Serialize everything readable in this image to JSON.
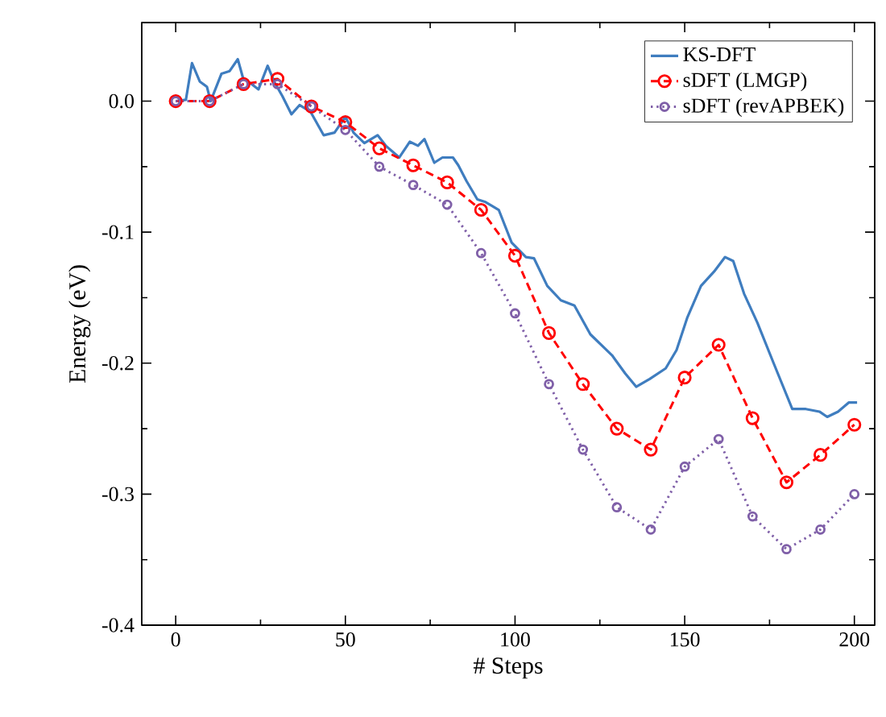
{
  "chart_data": {
    "type": "line",
    "xlabel": "# Steps",
    "ylabel": "Energy (eV)",
    "xlim": [
      -10,
      206
    ],
    "ylim": [
      -0.4,
      0.06
    ],
    "xticks": [
      0,
      50,
      100,
      150,
      200
    ],
    "yticks": [
      {
        "value": 0.0,
        "label": "0.0"
      },
      {
        "value": -0.1,
        "label": "-0.1"
      },
      {
        "value": -0.2,
        "label": "-0.2"
      },
      {
        "value": -0.3,
        "label": "-0.3"
      },
      {
        "value": -0.4,
        "label": "-0.4"
      }
    ],
    "grid": false,
    "legend": "top right",
    "series": [
      {
        "name": "KS-DFT",
        "color": "#3f7dbf",
        "marker": "none",
        "line_style": "solid",
        "x": [
          0,
          3,
          4.8,
          7.1,
          9.2,
          10.3,
          13.5,
          15.9,
          18.3,
          19.8,
          22.4,
          24.4,
          27.1,
          29,
          31.4,
          34.1,
          36.5,
          39.7,
          43.6,
          46.8,
          50,
          52.4,
          55.6,
          59.5,
          61.9,
          65.9,
          69,
          71.4,
          73.3,
          76.2,
          78.6,
          81.7,
          83.3,
          85.7,
          88.9,
          91.3,
          95.2,
          99,
          103.2,
          105.6,
          109.5,
          113.5,
          117.5,
          122.2,
          128.6,
          132.5,
          135.7,
          139.7,
          144.4,
          147.6,
          150.8,
          154.8,
          158.7,
          161.9,
          164.3,
          167.5,
          171.4,
          176.2,
          181.7,
          185.7,
          189.7,
          192,
          195.2,
          198.4,
          200.8
        ],
        "values": [
          0.0,
          0.001,
          0.029,
          0.015,
          0.011,
          0.0,
          0.021,
          0.023,
          0.032,
          0.018,
          0.013,
          0.009,
          0.027,
          0.015,
          0.004,
          -0.01,
          -0.003,
          -0.008,
          -0.026,
          -0.024,
          -0.012,
          -0.024,
          -0.032,
          -0.026,
          -0.034,
          -0.043,
          -0.031,
          -0.034,
          -0.029,
          -0.047,
          -0.043,
          -0.043,
          -0.049,
          -0.061,
          -0.075,
          -0.077,
          -0.083,
          -0.108,
          -0.119,
          -0.12,
          -0.141,
          -0.152,
          -0.156,
          -0.178,
          -0.194,
          -0.208,
          -0.218,
          -0.212,
          -0.204,
          -0.19,
          -0.165,
          -0.141,
          -0.13,
          -0.119,
          -0.122,
          -0.147,
          -0.169,
          -0.2,
          -0.235,
          -0.235,
          -0.237,
          -0.241,
          -0.237,
          -0.23,
          -0.23
        ]
      },
      {
        "name": "sDFT (LMGP)",
        "color": "#ff0000",
        "marker": "circle",
        "line_style": "dashed",
        "x": [
          0,
          10,
          20,
          30,
          40,
          50,
          60,
          70,
          80,
          90,
          100,
          110,
          120,
          130,
          140,
          150,
          160,
          170,
          180,
          190,
          200
        ],
        "values": [
          0.0,
          0.0,
          0.013,
          0.017,
          -0.004,
          -0.016,
          -0.036,
          -0.049,
          -0.062,
          -0.083,
          -0.118,
          -0.177,
          -0.216,
          -0.25,
          -0.266,
          -0.211,
          -0.186,
          -0.242,
          -0.291,
          -0.27,
          -0.247
        ]
      },
      {
        "name": "sDFT (revAPBEK)",
        "color": "#7f5fa8",
        "marker": "circle",
        "line_style": "dotted",
        "x": [
          0,
          10,
          20,
          30,
          40,
          50,
          60,
          70,
          80,
          90,
          100,
          110,
          120,
          130,
          140,
          150,
          160,
          170,
          180,
          190,
          200
        ],
        "values": [
          0.0,
          0.0,
          0.013,
          0.013,
          -0.004,
          -0.022,
          -0.05,
          -0.064,
          -0.079,
          -0.116,
          -0.162,
          -0.216,
          -0.266,
          -0.31,
          -0.327,
          -0.279,
          -0.258,
          -0.317,
          -0.342,
          -0.327,
          -0.3
        ]
      }
    ]
  }
}
